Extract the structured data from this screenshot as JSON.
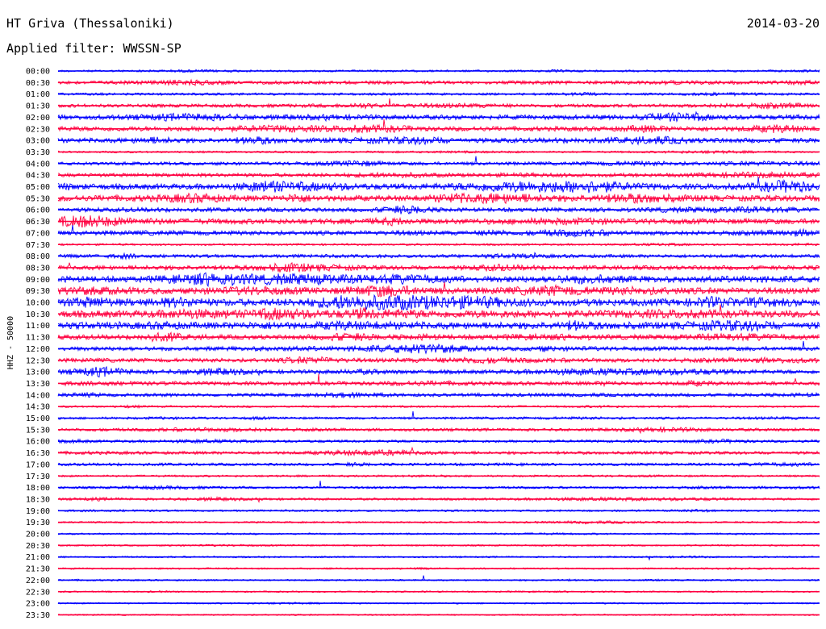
{
  "header": {
    "title": "HT Griva (Thessaloniki)",
    "date": "2014-03-20",
    "filter_label": "Applied filter: WWSSN-SP"
  },
  "chart_data": {
    "type": "line",
    "channel_label": "HHZ - 50000",
    "colors": [
      "#0000ff",
      "#ff0040"
    ],
    "rows": [
      {
        "time": "00:00",
        "activity": 0.15
      },
      {
        "time": "00:30",
        "activity": 0.35
      },
      {
        "time": "01:00",
        "activity": 0.2
      },
      {
        "time": "01:30",
        "activity": 0.35
      },
      {
        "time": "02:00",
        "activity": 0.55
      },
      {
        "time": "02:30",
        "activity": 0.55
      },
      {
        "time": "03:00",
        "activity": 0.55
      },
      {
        "time": "03:30",
        "activity": 0.15
      },
      {
        "time": "04:00",
        "activity": 0.35
      },
      {
        "time": "04:30",
        "activity": 0.4
      },
      {
        "time": "05:00",
        "activity": 0.7
      },
      {
        "time": "05:30",
        "activity": 0.7
      },
      {
        "time": "06:00",
        "activity": 0.45
      },
      {
        "time": "06:30",
        "activity": 0.65
      },
      {
        "time": "07:00",
        "activity": 0.5
      },
      {
        "time": "07:30",
        "activity": 0.15
      },
      {
        "time": "08:00",
        "activity": 0.35
      },
      {
        "time": "08:30",
        "activity": 0.5
      },
      {
        "time": "09:00",
        "activity": 0.75
      },
      {
        "time": "09:30",
        "activity": 0.75
      },
      {
        "time": "10:00",
        "activity": 0.9
      },
      {
        "time": "10:30",
        "activity": 0.9
      },
      {
        "time": "11:00",
        "activity": 0.85
      },
      {
        "time": "11:30",
        "activity": 0.55
      },
      {
        "time": "12:00",
        "activity": 0.45
      },
      {
        "time": "12:30",
        "activity": 0.45
      },
      {
        "time": "13:00",
        "activity": 0.45
      },
      {
        "time": "13:30",
        "activity": 0.4
      },
      {
        "time": "14:00",
        "activity": 0.35
      },
      {
        "time": "14:30",
        "activity": 0.15
      },
      {
        "time": "15:00",
        "activity": 0.2
      },
      {
        "time": "15:30",
        "activity": 0.3
      },
      {
        "time": "16:00",
        "activity": 0.25
      },
      {
        "time": "16:30",
        "activity": 0.3
      },
      {
        "time": "17:00",
        "activity": 0.25
      },
      {
        "time": "17:30",
        "activity": 0.15
      },
      {
        "time": "18:00",
        "activity": 0.2
      },
      {
        "time": "18:30",
        "activity": 0.2
      },
      {
        "time": "19:00",
        "activity": 0.15
      },
      {
        "time": "19:30",
        "activity": 0.12
      },
      {
        "time": "20:00",
        "activity": 0.1
      },
      {
        "time": "20:30",
        "activity": 0.1
      },
      {
        "time": "21:00",
        "activity": 0.1
      },
      {
        "time": "21:30",
        "activity": 0.1
      },
      {
        "time": "22:00",
        "activity": 0.1
      },
      {
        "time": "22:30",
        "activity": 0.08
      },
      {
        "time": "23:00",
        "activity": 0.08
      },
      {
        "time": "23:30",
        "activity": 0.08
      }
    ]
  }
}
